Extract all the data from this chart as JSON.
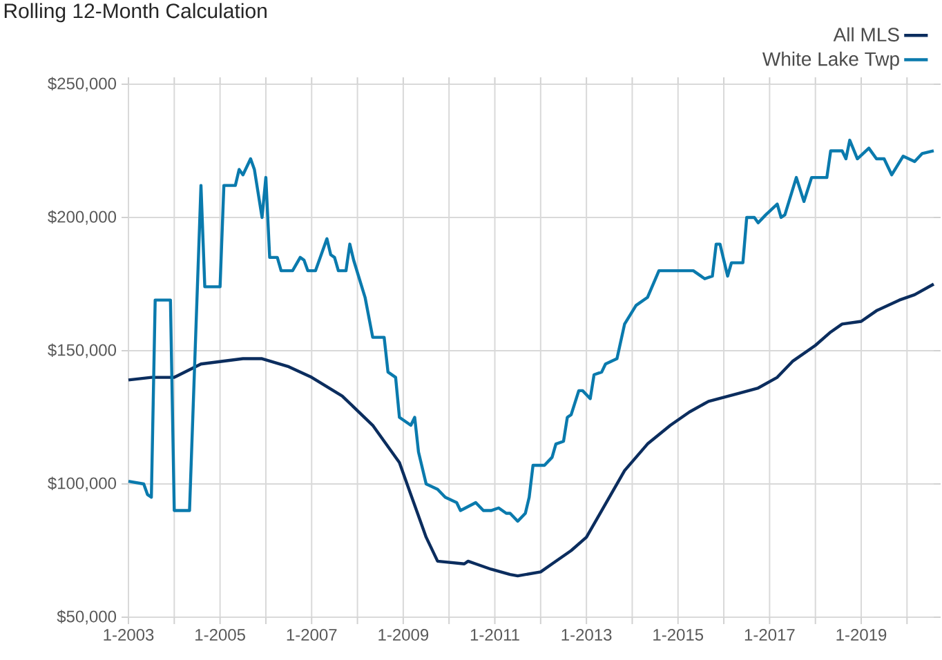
{
  "chart_data": {
    "type": "line",
    "title": "Rolling 12-Month Calculation",
    "xlim": [
      "2003-01",
      "2020-08"
    ],
    "ylim": [
      50000,
      250000
    ],
    "xticks": [
      {
        "value": "2003-01",
        "label": "1-2003"
      },
      {
        "value": "2004-01",
        "label": null
      },
      {
        "value": "2005-01",
        "label": "1-2005"
      },
      {
        "value": "2006-01",
        "label": null
      },
      {
        "value": "2007-01",
        "label": "1-2007"
      },
      {
        "value": "2008-01",
        "label": null
      },
      {
        "value": "2009-01",
        "label": "1-2009"
      },
      {
        "value": "2010-01",
        "label": null
      },
      {
        "value": "2011-01",
        "label": "1-2011"
      },
      {
        "value": "2012-01",
        "label": null
      },
      {
        "value": "2013-01",
        "label": "1-2013"
      },
      {
        "value": "2014-01",
        "label": null
      },
      {
        "value": "2015-01",
        "label": "1-2015"
      },
      {
        "value": "2016-01",
        "label": null
      },
      {
        "value": "2017-01",
        "label": "1-2017"
      },
      {
        "value": "2018-01",
        "label": null
      },
      {
        "value": "2019-01",
        "label": "1-2019"
      },
      {
        "value": "2020-01",
        "label": null
      }
    ],
    "yticks": [
      {
        "value": 50000,
        "label": "$50,000"
      },
      {
        "value": 100000,
        "label": "$100,000"
      },
      {
        "value": 150000,
        "label": "$150,000"
      },
      {
        "value": 200000,
        "label": "$200,000"
      },
      {
        "value": 250000,
        "label": "$250,000"
      }
    ],
    "grid": true,
    "legend": "top right",
    "marker": "none",
    "line_style": "solid",
    "series": [
      {
        "name": "All MLS",
        "color": "#0b2d5e",
        "x": [
          "2003-01",
          "2003-07",
          "2004-01",
          "2004-08",
          "2005-07",
          "2005-12",
          "2006-07",
          "2007-01",
          "2007-09",
          "2008-05",
          "2008-12",
          "2009-03",
          "2009-07",
          "2009-10",
          "2010-05",
          "2010-06",
          "2010-08",
          "2010-12",
          "2011-05",
          "2011-07",
          "2012-01",
          "2012-04",
          "2012-09",
          "2013-01",
          "2013-05",
          "2013-11",
          "2014-05",
          "2014-11",
          "2015-04",
          "2015-09",
          "2016-05",
          "2016-10",
          "2017-03",
          "2017-07",
          "2018-01",
          "2018-05",
          "2018-08",
          "2019-01",
          "2019-05",
          "2019-11",
          "2020-03",
          "2020-08"
        ],
        "values": [
          139000,
          140000,
          140000,
          145000,
          147000,
          147000,
          144000,
          140000,
          133000,
          122000,
          108000,
          96000,
          80000,
          71000,
          70000,
          71000,
          70000,
          68000,
          66000,
          65500,
          67000,
          70000,
          75000,
          80000,
          90000,
          105000,
          115000,
          122000,
          127000,
          131000,
          134000,
          136000,
          140000,
          146000,
          152000,
          157000,
          160000,
          161000,
          165000,
          169000,
          171000,
          175000
        ]
      },
      {
        "name": "White Lake Twp",
        "color": "#0a7aad",
        "x": [
          "2003-01",
          "2003-05",
          "2003-06",
          "2003-07",
          "2003-08",
          "2003-12",
          "2004-01",
          "2004-05",
          "2004-08",
          "2004-09",
          "2005-01",
          "2005-02",
          "2005-05",
          "2005-06",
          "2005-07",
          "2005-09",
          "2005-10",
          "2005-12",
          "2006-01",
          "2006-02",
          "2006-04",
          "2006-05",
          "2006-08",
          "2006-10",
          "2006-11",
          "2006-12",
          "2007-02",
          "2007-05",
          "2007-06",
          "2007-07",
          "2007-08",
          "2007-10",
          "2007-11",
          "2007-12",
          "2008-03",
          "2008-05",
          "2008-08",
          "2008-09",
          "2008-11",
          "2008-12",
          "2009-03",
          "2009-04",
          "2009-05",
          "2009-07",
          "2009-10",
          "2009-12",
          "2010-03",
          "2010-04",
          "2010-08",
          "2010-10",
          "2010-12",
          "2011-02",
          "2011-04",
          "2011-05",
          "2011-07",
          "2011-09",
          "2011-10",
          "2011-11",
          "2012-02",
          "2012-04",
          "2012-05",
          "2012-07",
          "2012-08",
          "2012-09",
          "2012-11",
          "2012-12",
          "2013-02",
          "2013-03",
          "2013-05",
          "2013-06",
          "2013-09",
          "2013-11",
          "2014-02",
          "2014-05",
          "2014-08",
          "2015-05",
          "2015-08",
          "2015-10",
          "2015-11",
          "2015-12",
          "2016-02",
          "2016-03",
          "2016-06",
          "2016-07",
          "2016-09",
          "2016-10",
          "2016-12",
          "2017-03",
          "2017-04",
          "2017-05",
          "2017-08",
          "2017-10",
          "2017-12",
          "2018-04",
          "2018-05",
          "2018-08",
          "2018-09",
          "2018-10",
          "2018-12",
          "2019-03",
          "2019-05",
          "2019-07",
          "2019-09",
          "2019-12",
          "2020-03",
          "2020-05",
          "2020-08"
        ],
        "values": [
          101000,
          100000,
          96000,
          95000,
          169000,
          169000,
          90000,
          90000,
          212000,
          174000,
          174000,
          212000,
          212000,
          218000,
          216000,
          222000,
          218000,
          200000,
          215000,
          185000,
          185000,
          180000,
          180000,
          185000,
          184000,
          180000,
          180000,
          192000,
          186000,
          185000,
          180000,
          180000,
          190000,
          184000,
          170000,
          155000,
          155000,
          142000,
          140000,
          125000,
          122000,
          125000,
          112000,
          100000,
          98000,
          95000,
          93000,
          90000,
          93000,
          90000,
          90000,
          91000,
          89000,
          89000,
          86000,
          89000,
          95000,
          107000,
          107000,
          110000,
          115000,
          116000,
          125000,
          126000,
          135000,
          135000,
          132000,
          141000,
          142000,
          145000,
          147000,
          160000,
          167000,
          170000,
          180000,
          180000,
          177000,
          178000,
          190000,
          190000,
          178000,
          183000,
          183000,
          200000,
          200000,
          198000,
          201000,
          205000,
          200000,
          201000,
          215000,
          206000,
          215000,
          215000,
          225000,
          225000,
          222000,
          229000,
          222000,
          226000,
          222000,
          222000,
          216000,
          223000,
          221000,
          224000,
          225000
        ]
      }
    ]
  }
}
